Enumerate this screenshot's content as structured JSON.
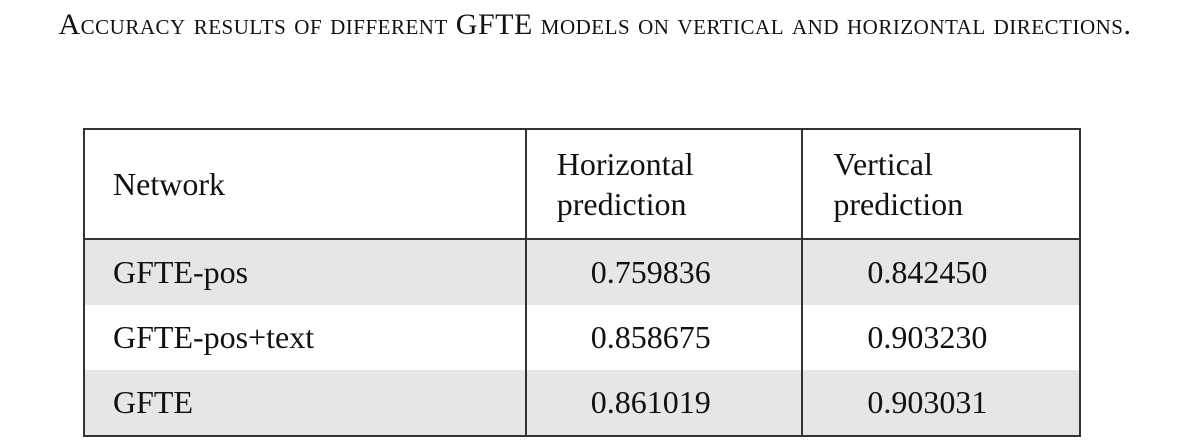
{
  "caption": "Accuracy results of different GFTE models on vertical and horizontal directions.",
  "table": {
    "header": [
      "Network",
      "Horizontal prediction",
      "Vertical prediction"
    ],
    "rows": [
      [
        "GFTE-pos",
        "0.759836",
        "0.842450"
      ],
      [
        "GFTE-pos+text",
        "0.858675",
        "0.903230"
      ],
      [
        "GFTE",
        "0.861019",
        "0.903031"
      ]
    ]
  }
}
